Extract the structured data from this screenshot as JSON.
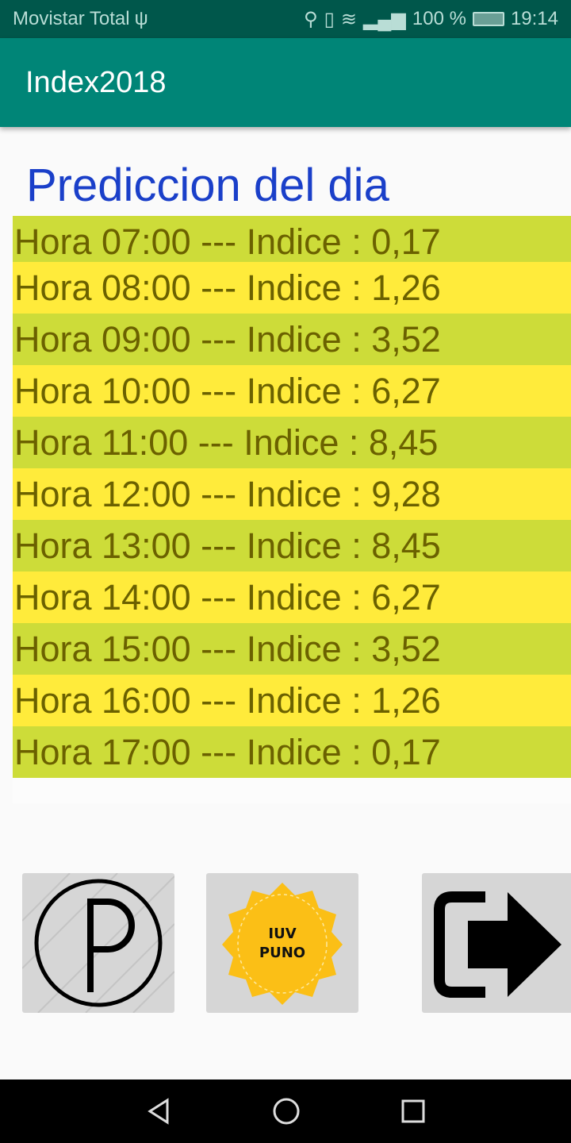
{
  "status_bar": {
    "carrier": "Movistar Total",
    "battery": "100 %",
    "time": "19:14"
  },
  "app_bar": {
    "title": "Index2018"
  },
  "main": {
    "heading": "Prediccion del dia",
    "rows": [
      {
        "text": "Hora 07:00 --- Indice : 0,17"
      },
      {
        "text": "Hora 08:00 --- Indice : 1,26"
      },
      {
        "text": "Hora 09:00 --- Indice : 3,52"
      },
      {
        "text": "Hora 10:00 --- Indice : 6,27"
      },
      {
        "text": "Hora 11:00 --- Indice : 8,45"
      },
      {
        "text": "Hora 12:00 --- Indice : 9,28"
      },
      {
        "text": "Hora 13:00 --- Indice : 8,45"
      },
      {
        "text": "Hora 14:00 --- Indice : 6,27"
      },
      {
        "text": "Hora 15:00 --- Indice : 3,52"
      },
      {
        "text": "Hora 16:00 --- Indice : 1,26"
      },
      {
        "text": "Hora 17:00 --- Indice : 0,17"
      }
    ]
  },
  "buttons": [
    {
      "icon": "parking-p-icon"
    },
    {
      "icon": "iuv-puno-badge-icon",
      "logo_text": [
        "IUV",
        "PUNO"
      ]
    },
    {
      "icon": "exit-arrow-icon"
    }
  ],
  "colors": {
    "row_green": "#cddc39",
    "row_yellow": "#ffeb3b",
    "app_bar": "#008577",
    "status_bar": "#00574b",
    "heading": "#1a3fc9"
  }
}
